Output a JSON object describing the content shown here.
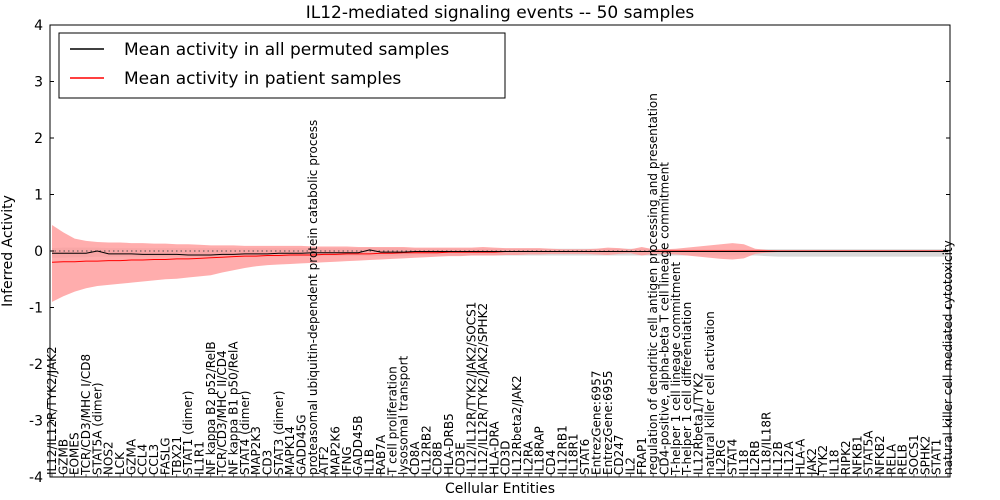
{
  "chart_data": {
    "type": "line",
    "title": "IL12-mediated signaling events -- 50 samples",
    "xlabel": "Cellular Entities",
    "ylabel": "Inferred Activity",
    "ylim": [
      -4,
      4
    ],
    "yticks": [
      -4,
      -3,
      -2,
      -1,
      0,
      1,
      2,
      3,
      4
    ],
    "grid": false,
    "legend_position": "top-left",
    "colors": {
      "permuted_line": "#000000",
      "patient_line": "#ff0000",
      "patient_band": "#ff9999",
      "permuted_band": "#cccccc",
      "zero_line": "#555555"
    },
    "categories": [
      "IL12/IL12R/TYK2/JAK2",
      "GZMB",
      "EOMES",
      "TCR/CD3/MHC I/CD8",
      "STAT5A (dimer)",
      "NOS2",
      "LCK",
      "GZMA",
      "CCL4",
      "CCL3",
      "FASLG",
      "TBX21",
      "STAT1 (dimer)",
      "IL1R1",
      "NF kappa B2 p52/RelB",
      "TCR/CD3/MHC II/CD4",
      "NF kappa B1 p50/RelA",
      "STAT4 (dimer)",
      "MAP2K3",
      "CD3",
      "STAT3 (dimer)",
      "MAPK14",
      "GADD45G",
      "proteasomal ubiquitin-dependent protein catabolic process",
      "ATF2",
      "MAP2K6",
      "IFNG",
      "GADD45B",
      "IL1B",
      "RAB7A",
      "T cell proliferation",
      "lysosomal transport",
      "CD8A",
      "IL12RB2",
      "CD8B",
      "HLA-DRB5",
      "CD3E",
      "IL12/IL12R/TYK2/JAK2/SOCS1",
      "IL12/IL12R/TYK2/JAK2/SPHK2",
      "HLA-DRA",
      "CD3D",
      "IL12Rbeta2/JAK2",
      "IL2RA",
      "IL18RAP",
      "CD4",
      "IL12RB1",
      "IL18R1",
      "STAT6",
      "EntrezGene:6957",
      "EntrezGene:6955",
      "CD247",
      "IL2",
      "FRAP1",
      "regulation of dendritic cell antigen processing and presentation",
      "CD4-positive, alpha-beta T cell lineage commitment",
      "T-helper 1 cell lineage commitment",
      "T-helper 1 cell differentiation",
      "IL12Rbeta1/TYK2",
      "natural killer cell activation",
      "IL2RG",
      "STAT4",
      "IL18",
      "IL2RB",
      "IL18/IL18R",
      "IL12B",
      "IL12A",
      "HLA-A",
      "JAK2",
      "TYK2",
      "IL18",
      "RIPK2",
      "NFKB1",
      "STAT5A",
      "NFKB2",
      "RELA",
      "RELB",
      "SOCS1",
      "SPHK2",
      "STAT1",
      "natural killer cell mediated cytotoxicity"
    ],
    "series": [
      {
        "name": "Mean activity in all permuted samples",
        "values": [
          -0.04,
          -0.04,
          -0.04,
          -0.04,
          0.0,
          -0.05,
          -0.05,
          -0.05,
          -0.06,
          -0.06,
          -0.06,
          -0.06,
          -0.07,
          -0.07,
          -0.07,
          -0.06,
          -0.06,
          -0.05,
          -0.05,
          -0.05,
          -0.04,
          -0.04,
          -0.04,
          -0.03,
          -0.03,
          -0.03,
          -0.03,
          -0.03,
          0.02,
          -0.02,
          -0.02,
          -0.02,
          -0.01,
          -0.01,
          -0.01,
          -0.01,
          -0.01,
          -0.01,
          -0.01,
          -0.01,
          -0.01,
          -0.01,
          -0.01,
          -0.01,
          -0.01,
          -0.01,
          -0.01,
          -0.01,
          -0.01,
          -0.01,
          -0.01,
          -0.01,
          -0.01,
          -0.01,
          -0.01,
          -0.01,
          -0.01,
          -0.01,
          -0.01,
          -0.01,
          -0.01,
          -0.01,
          -0.01,
          -0.01,
          -0.01,
          -0.01,
          -0.01,
          -0.01,
          -0.01,
          -0.01,
          -0.01,
          -0.01,
          -0.01,
          -0.01,
          -0.01,
          -0.01,
          -0.01,
          -0.01,
          -0.01,
          -0.01
        ]
      },
      {
        "name": "Mean activity in patient samples",
        "values": [
          -0.2,
          -0.19,
          -0.19,
          -0.18,
          -0.18,
          -0.17,
          -0.17,
          -0.16,
          -0.16,
          -0.15,
          -0.15,
          -0.14,
          -0.14,
          -0.13,
          -0.12,
          -0.11,
          -0.1,
          -0.09,
          -0.09,
          -0.08,
          -0.08,
          -0.07,
          -0.07,
          -0.07,
          -0.06,
          -0.06,
          -0.05,
          -0.05,
          -0.05,
          -0.04,
          -0.04,
          -0.03,
          -0.03,
          -0.03,
          -0.03,
          -0.02,
          -0.02,
          -0.02,
          -0.02,
          -0.02,
          -0.01,
          -0.01,
          -0.01,
          -0.01,
          -0.01,
          -0.01,
          -0.01,
          -0.01,
          -0.01,
          -0.01,
          -0.01,
          -0.01,
          -0.01,
          -0.01,
          0.0,
          0.0,
          0.0,
          0.0,
          0.0,
          0.0,
          0.0,
          0.0,
          0.0,
          0.0,
          0.0,
          0.0,
          0.0,
          0.0,
          0.0,
          0.0,
          0.0,
          0.0,
          0.0,
          0.0,
          0.0,
          0.0,
          0.0,
          0.0,
          0.0,
          0.0
        ],
        "upper": [
          0.46,
          0.33,
          0.22,
          0.18,
          0.16,
          0.15,
          0.15,
          0.14,
          0.14,
          0.13,
          0.13,
          0.12,
          0.12,
          0.11,
          0.1,
          0.1,
          0.1,
          0.09,
          0.09,
          0.09,
          0.09,
          0.09,
          0.09,
          0.08,
          0.08,
          0.08,
          0.08,
          0.07,
          0.07,
          0.07,
          0.07,
          0.07,
          0.06,
          0.06,
          0.06,
          0.06,
          0.06,
          0.06,
          0.07,
          0.06,
          0.05,
          0.05,
          0.05,
          0.05,
          0.04,
          0.03,
          0.03,
          0.03,
          0.04,
          0.06,
          0.05,
          0.03,
          0.07,
          0.03,
          0.03,
          0.04,
          0.06,
          0.08,
          0.1,
          0.12,
          0.14,
          0.12,
          0.04,
          0.02,
          0.01,
          0.01,
          0.01,
          0.01,
          0.01,
          0.01,
          0.01,
          0.01,
          0.01,
          0.01,
          0.01,
          0.01,
          0.01,
          0.01,
          0.01,
          0.01
        ],
        "lower": [
          -0.9,
          -0.8,
          -0.72,
          -0.66,
          -0.62,
          -0.6,
          -0.58,
          -0.56,
          -0.54,
          -0.52,
          -0.5,
          -0.49,
          -0.47,
          -0.45,
          -0.43,
          -0.38,
          -0.34,
          -0.3,
          -0.27,
          -0.25,
          -0.24,
          -0.23,
          -0.22,
          -0.21,
          -0.2,
          -0.19,
          -0.18,
          -0.17,
          -0.16,
          -0.15,
          -0.14,
          -0.13,
          -0.12,
          -0.11,
          -0.1,
          -0.09,
          -0.09,
          -0.08,
          -0.08,
          -0.08,
          -0.07,
          -0.07,
          -0.06,
          -0.06,
          -0.05,
          -0.05,
          -0.05,
          -0.05,
          -0.06,
          -0.07,
          -0.05,
          -0.04,
          -0.08,
          -0.05,
          -0.05,
          -0.06,
          -0.08,
          -0.1,
          -0.12,
          -0.14,
          -0.15,
          -0.13,
          -0.05,
          -0.03,
          -0.02,
          -0.02,
          -0.02,
          -0.02,
          -0.02,
          -0.02,
          -0.02,
          -0.02,
          -0.02,
          -0.02,
          -0.02,
          -0.02,
          -0.02,
          -0.02,
          -0.02,
          -0.02
        ]
      }
    ],
    "permuted_band": {
      "upper": [
        0.05,
        0.06,
        0.06,
        0.06,
        0.06,
        0.05,
        0.05,
        0.05,
        0.05,
        0.05,
        0.05,
        0.05,
        0.05,
        0.05,
        0.05,
        0.05,
        0.05,
        0.05,
        0.05,
        0.05,
        0.05,
        0.05,
        0.05,
        0.05,
        0.05,
        0.05,
        0.05,
        0.05,
        0.05,
        0.05,
        0.05,
        0.05,
        0.04,
        0.04,
        0.04,
        0.04,
        0.04,
        0.04,
        0.04,
        0.04,
        0.04,
        0.04,
        0.04,
        0.04,
        0.04,
        0.04,
        0.04,
        0.04,
        0.04,
        0.04,
        0.04,
        0.04,
        0.04,
        0.04,
        0.03,
        0.03,
        0.03,
        0.03,
        0.03,
        0.03,
        0.03,
        0.03,
        0.03,
        0.03,
        0.03,
        0.03,
        0.03,
        0.03,
        0.03,
        0.03,
        0.03,
        0.03,
        0.03,
        0.03,
        0.03,
        0.03,
        0.03,
        0.03,
        0.03,
        0.03
      ],
      "lower": [
        -0.12,
        -0.12,
        -0.11,
        -0.11,
        -0.1,
        -0.1,
        -0.1,
        -0.1,
        -0.1,
        -0.1,
        -0.1,
        -0.1,
        -0.1,
        -0.1,
        -0.1,
        -0.1,
        -0.1,
        -0.1,
        -0.1,
        -0.1,
        -0.1,
        -0.1,
        -0.09,
        -0.09,
        -0.09,
        -0.09,
        -0.09,
        -0.09,
        -0.09,
        -0.09,
        -0.09,
        -0.09,
        -0.08,
        -0.08,
        -0.08,
        -0.08,
        -0.08,
        -0.08,
        -0.08,
        -0.08,
        -0.08,
        -0.08,
        -0.08,
        -0.08,
        -0.08,
        -0.08,
        -0.08,
        -0.08,
        -0.08,
        -0.08,
        -0.08,
        -0.08,
        -0.08,
        -0.08,
        -0.08,
        -0.08,
        -0.08,
        -0.08,
        -0.08,
        -0.08,
        -0.08,
        -0.08,
        -0.08,
        -0.09,
        -0.1,
        -0.1,
        -0.1,
        -0.1,
        -0.1,
        -0.1,
        -0.1,
        -0.1,
        -0.1,
        -0.1,
        -0.1,
        -0.1,
        -0.1,
        -0.1,
        -0.1,
        -0.1
      ]
    }
  }
}
